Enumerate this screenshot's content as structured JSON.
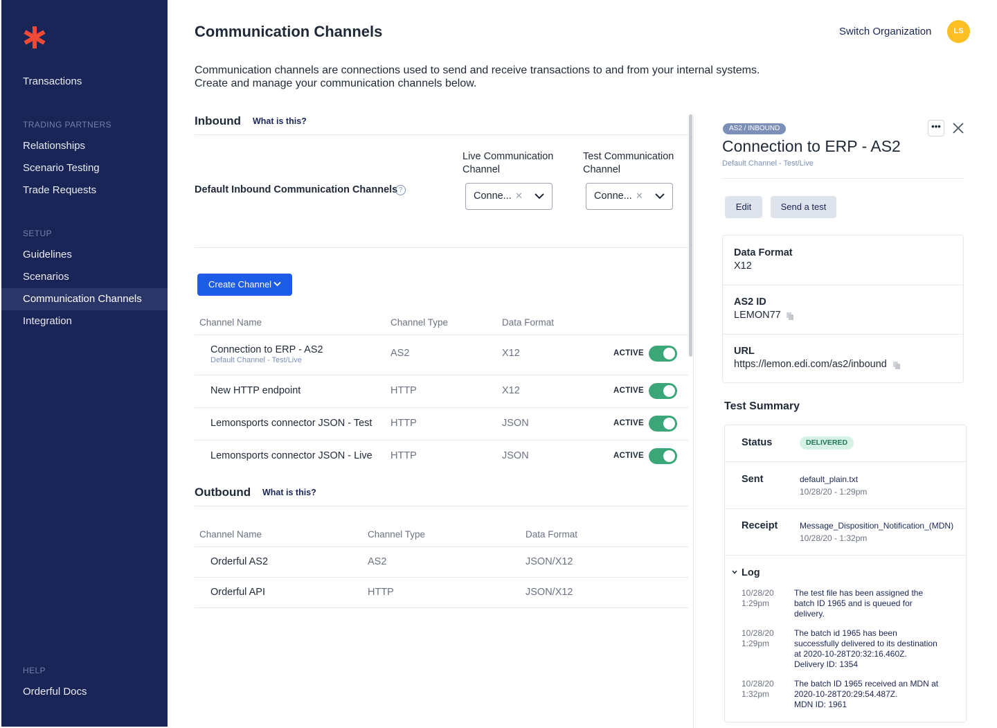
{
  "sidebar": {
    "items_top": [
      {
        "label": "Transactions"
      }
    ],
    "sections": [
      {
        "title": "TRADING PARTNERS",
        "items": [
          {
            "label": "Relationships"
          },
          {
            "label": "Scenario Testing"
          },
          {
            "label": "Trade Requests"
          }
        ]
      },
      {
        "title": "SETUP",
        "items": [
          {
            "label": "Guidelines"
          },
          {
            "label": "Scenarios"
          },
          {
            "label": "Communication Channels"
          },
          {
            "label": "Integration"
          }
        ]
      },
      {
        "title": "HELP",
        "items": [
          {
            "label": "Orderful Docs"
          }
        ]
      }
    ],
    "active_item": "Communication Channels",
    "accent": "#ef4a36"
  },
  "header": {
    "title": "Communication Channels",
    "switch_org": "Switch Organization",
    "avatar_initials": "LS"
  },
  "intro": {
    "line1": "Communication channels are connections used to send and receive transactions to and from your internal systems.",
    "line2": "Create and manage your communication channels below."
  },
  "inbound": {
    "title": "Inbound",
    "what_link": "What is this?",
    "default_label": "Default Inbound Communication Channels",
    "live_header_1": "Live Communication",
    "live_header_2": "Channel",
    "test_header_1": "Test Communication",
    "test_header_2": "Channel",
    "live_value": "Conne...",
    "test_value": "Conne...",
    "create_button": "Create Channel",
    "columns": [
      "Channel Name",
      "Channel Type",
      "Data Format"
    ],
    "rows": [
      {
        "name": "Connection to ERP - AS2",
        "sub": "Default Channel - Test/Live",
        "type": "AS2",
        "format": "X12",
        "status": "ACTIVE"
      },
      {
        "name": "New HTTP endpoint",
        "type": "HTTP",
        "format": "X12",
        "status": "ACTIVE"
      },
      {
        "name": "Lemonsports connector JSON - Test",
        "type": "HTTP",
        "format": "JSON",
        "status": "ACTIVE"
      },
      {
        "name": "Lemonsports connector JSON - Live",
        "type": "HTTP",
        "format": "JSON",
        "status": "ACTIVE"
      }
    ]
  },
  "outbound": {
    "title": "Outbound",
    "what_link": "What is this?",
    "columns": [
      "Channel Name",
      "Channel Type",
      "Data Format"
    ],
    "rows": [
      {
        "name": "Orderful AS2",
        "type": "AS2",
        "format": "JSON/X12"
      },
      {
        "name": "Orderful API",
        "type": "HTTP",
        "format": "JSON/X12"
      }
    ]
  },
  "panel": {
    "badge": "AS2 / INBOUND",
    "more": "•••",
    "title": "Connection to ERP - AS2",
    "subtitle": "Default Channel - Test/Live",
    "edit_button": "Edit",
    "send_test_button": "Send a test",
    "details": [
      {
        "label": "Data Format",
        "value": "X12"
      },
      {
        "label": "AS2 ID",
        "value": "LEMON77"
      },
      {
        "label": "URL",
        "value": "https://lemon.edi.com/as2/inbound"
      }
    ],
    "test_summary": {
      "title": "Test Summary",
      "status_label": "Status",
      "status_value": "DELIVERED",
      "sent_label": "Sent",
      "sent_file": "default_plain.txt",
      "sent_time": "10/28/20 - 1:29pm",
      "receipt_label": "Receipt",
      "receipt_file": "Message_Disposition_Notification_(MDN)",
      "receipt_time": "10/28/20 -  1:32pm",
      "log_label": "Log",
      "log": [
        {
          "date": "10/28/20",
          "time": "1:29pm",
          "lines": [
            "The test file has been assigned the",
            "batch ID 1965 and is queued for",
            "delivery."
          ]
        },
        {
          "date": "10/28/20",
          "time": "1:29pm",
          "lines": [
            "The batch id 1965 has been",
            "successfully delivered to its destination",
            "at 2020-10-28T20:32:16.460Z.",
            "Delivery ID: 1354"
          ]
        },
        {
          "date": "10/28/20",
          "time": "1:32pm",
          "lines": [
            "The batch ID 1965 received an MDN at",
            "2020-10-28T20:29:54.487Z.",
            "MDN ID: 1961"
          ]
        }
      ]
    }
  }
}
